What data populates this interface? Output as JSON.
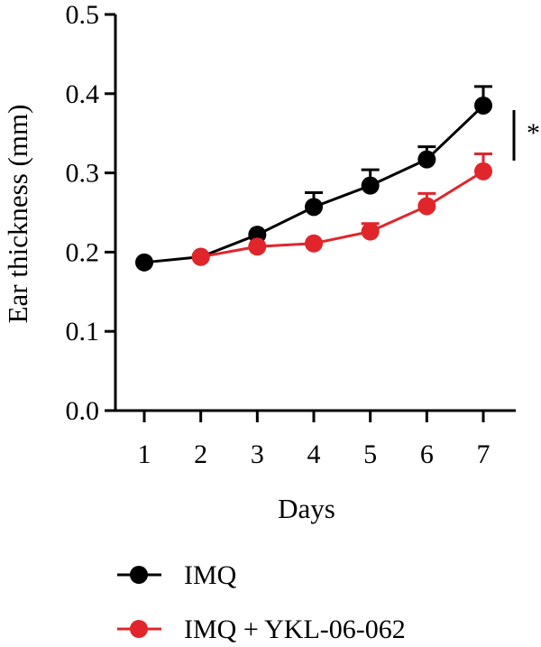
{
  "chart_data": {
    "type": "line",
    "title": "",
    "xlabel": "Days",
    "ylabel": "Ear thickness (mm)",
    "x": [
      1,
      2,
      3,
      4,
      5,
      6,
      7
    ],
    "x_tick_labels": [
      "1",
      "2",
      "3",
      "4",
      "5",
      "6",
      "7"
    ],
    "y_tick_labels": [
      "0.0",
      "0.1",
      "0.2",
      "0.3",
      "0.4",
      "0.5"
    ],
    "ylim": [
      0,
      0.5
    ],
    "xlim": [
      1,
      7
    ],
    "grid": false,
    "legend_position": "bottom",
    "series": [
      {
        "name": "IMQ",
        "color": "#000000",
        "x": [
          1,
          2,
          3,
          4,
          5,
          6,
          7
        ],
        "values": [
          0.187,
          0.194,
          0.222,
          0.257,
          0.284,
          0.317,
          0.385
        ],
        "error": [
          0,
          0,
          0,
          0.018,
          0.02,
          0.016,
          0.024
        ]
      },
      {
        "name": "IMQ + YKL-06-062",
        "color": "#e0262b",
        "x": [
          2,
          3,
          4,
          5,
          6,
          7
        ],
        "values": [
          0.194,
          0.207,
          0.211,
          0.226,
          0.258,
          0.302
        ],
        "error": [
          0,
          0,
          0,
          0.01,
          0.016,
          0.022
        ]
      }
    ],
    "annotations": [
      "*"
    ]
  }
}
